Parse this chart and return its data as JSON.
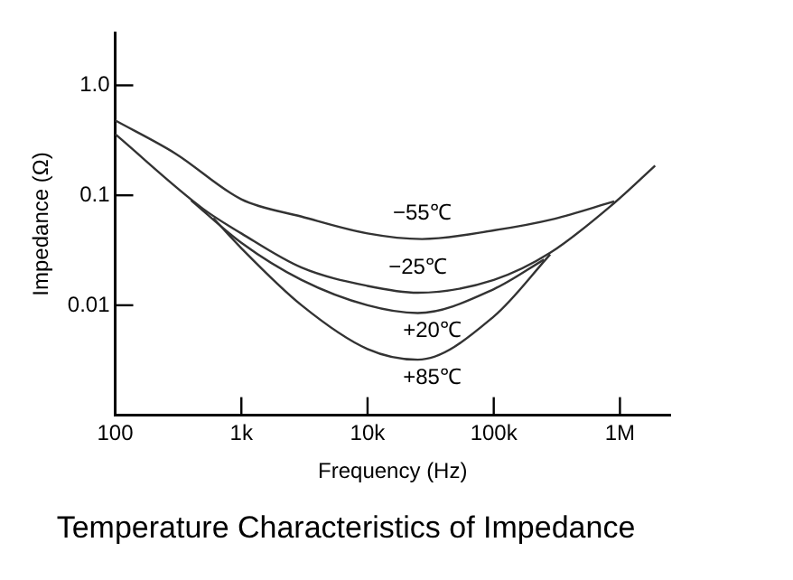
{
  "chart_data": {
    "type": "line",
    "title": "Temperature Characteristics of Impedance",
    "xlabel": "Frequency (Hz)",
    "ylabel": "Impedance (Ω)",
    "log": "xy",
    "grid": false,
    "legend": false,
    "marker": "none",
    "line_style": "solid",
    "xlim": [
      100,
      2500000
    ],
    "xticks": [
      100,
      {
        "value": 1000,
        "label": "1k"
      },
      {
        "value": 10000,
        "label": "10k"
      },
      {
        "value": 100000,
        "label": "100k"
      },
      {
        "value": 1000000,
        "label": "1M"
      }
    ],
    "ylim": [
      0.001,
      3
    ],
    "yticks": [
      {
        "value": 1,
        "label": "1.0"
      },
      0.1,
      0.01
    ],
    "series": [
      {
        "name": "−55℃",
        "color": "#333333",
        "x": [
          100,
          300,
          1000,
          3000,
          10000,
          27000,
          100000,
          300000,
          900000
        ],
        "values": [
          0.48,
          0.24,
          0.092,
          0.064,
          0.045,
          0.04,
          0.048,
          0.061,
          0.088
        ]
      },
      {
        "name": "−25℃",
        "color": "#333333",
        "x": [
          100,
          500,
          1000,
          3000,
          10000,
          25000,
          100000,
          280000,
          900000,
          1900000
        ],
        "values": [
          0.36,
          0.075,
          0.045,
          0.022,
          0.015,
          0.013,
          0.017,
          0.03,
          0.085,
          0.186
        ]
      },
      {
        "name": "+20℃",
        "color": "#333333",
        "x": [
          400,
          1000,
          3000,
          10000,
          25000,
          100000,
          250000
        ],
        "values": [
          0.09,
          0.037,
          0.017,
          0.01,
          0.0085,
          0.014,
          0.026
        ]
      },
      {
        "name": "+85℃",
        "color": "#333333",
        "x": [
          600,
          1000,
          3000,
          10000,
          25000,
          100000,
          280000
        ],
        "values": [
          0.062,
          0.033,
          0.01,
          0.004,
          0.0032,
          0.0079,
          0.029
        ]
      }
    ]
  }
}
